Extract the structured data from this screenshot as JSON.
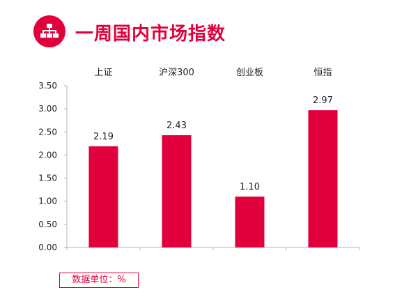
{
  "header": {
    "title": "一周国内市场指数",
    "icon": "hierarchy-icon",
    "accent_color": "#e0003c"
  },
  "chart_data": {
    "type": "bar",
    "categories": [
      "上证",
      "沪深300",
      "创业板",
      "恒指"
    ],
    "values": [
      2.19,
      2.43,
      1.1,
      2.97
    ],
    "data_labels": [
      "2.19",
      "2.43",
      "1.10",
      "2.97"
    ],
    "yticks": [
      "0.00",
      "0.50",
      "1.00",
      "1.50",
      "2.00",
      "2.50",
      "3.00",
      "3.50"
    ],
    "ylim": [
      0,
      3.5
    ],
    "category_axis_position": "top",
    "grid": false,
    "bar_color": "#e0003c",
    "title": "",
    "xlabel": "",
    "ylabel": ""
  },
  "footer": {
    "unit_note": "数据单位：%"
  }
}
